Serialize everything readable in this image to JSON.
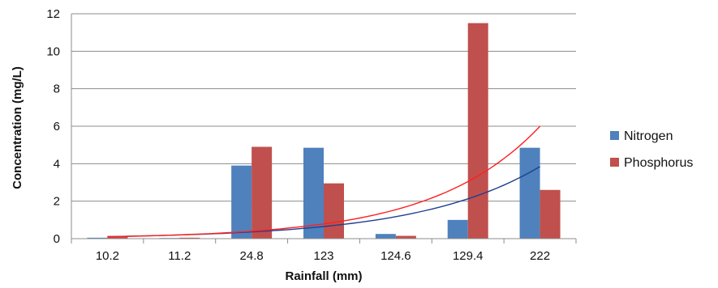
{
  "chart_data": {
    "type": "bar",
    "title": "",
    "xlabel": "Rainfall (mm)",
    "ylabel": "Concentration (mg/L)",
    "categories": [
      "10.2",
      "11.2",
      "24.8",
      "123",
      "124.6",
      "129.4",
      "222"
    ],
    "ylim": [
      0,
      12
    ],
    "yticks": [
      "0",
      "2",
      "4",
      "6",
      "8",
      "10",
      "12"
    ],
    "grid": true,
    "legend_position": "right",
    "series": [
      {
        "name": "Nitrogen",
        "color": "#4F81BD",
        "values": [
          0.05,
          0.02,
          3.9,
          4.85,
          0.25,
          1.0,
          4.85
        ]
      },
      {
        "name": "Phosphorus",
        "color": "#C0504D",
        "values": [
          0.12,
          0.05,
          4.9,
          2.95,
          0.15,
          11.5,
          2.6
        ]
      }
    ],
    "trendlines": [
      {
        "series": "Nitrogen",
        "type": "exponential",
        "color": "#1F3F8F",
        "points": [
          [
            1,
            0.12
          ],
          [
            2,
            0.2
          ],
          [
            3,
            0.33
          ],
          [
            4,
            0.6
          ],
          [
            5,
            1.1
          ],
          [
            6,
            2.2
          ],
          [
            7,
            4.15
          ]
        ]
      },
      {
        "series": "Phosphorus",
        "type": "exponential",
        "color": "#FF2020",
        "points": [
          [
            1,
            0.12
          ],
          [
            2,
            0.2
          ],
          [
            3,
            0.35
          ],
          [
            4,
            0.7
          ],
          [
            5,
            1.5
          ],
          [
            6,
            3.2
          ],
          [
            7,
            6.5
          ]
        ]
      }
    ]
  }
}
